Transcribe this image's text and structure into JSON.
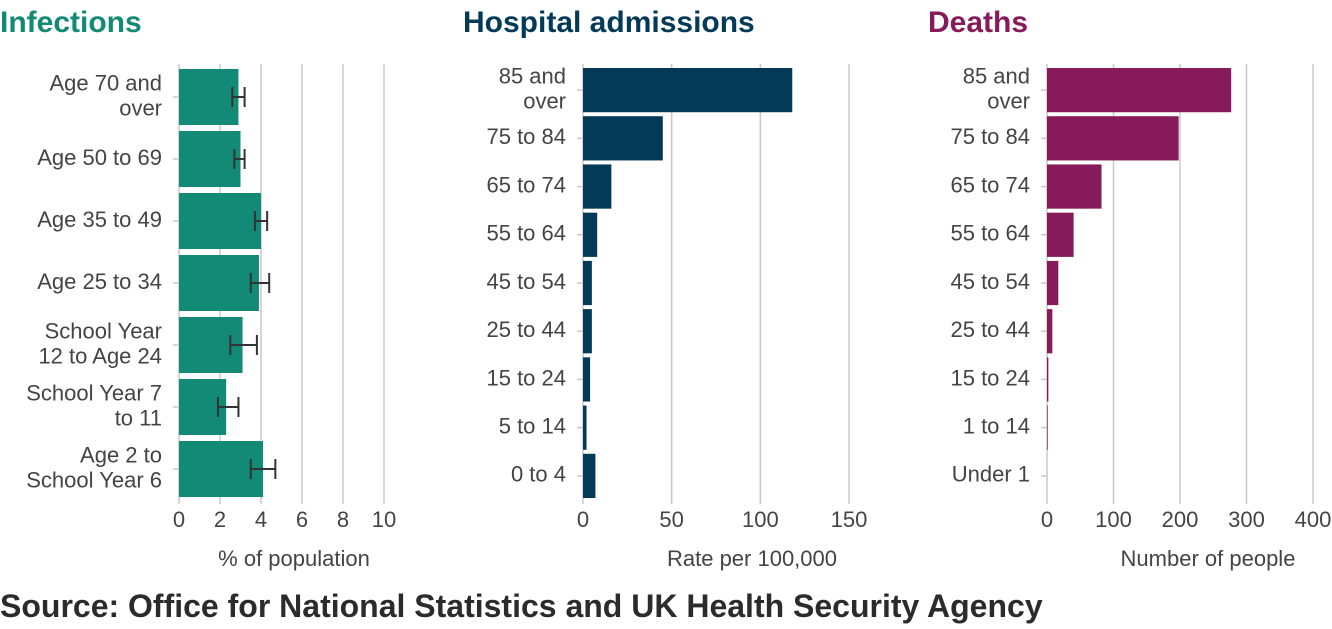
{
  "source": "Source: Office for National Statistics and UK Health Security Agency",
  "chart_data": [
    {
      "type": "bar",
      "orientation": "horizontal",
      "title": "Infections",
      "title_color": "#138a76",
      "bar_color": "#138a76",
      "xlabel": "% of population",
      "xlim": [
        0,
        10
      ],
      "xticks": [
        "0",
        "2",
        "4",
        "6",
        "8",
        "10"
      ],
      "grid": true,
      "error_bars": true,
      "categories": [
        [
          "Age 70 and",
          "over"
        ],
        [
          "Age 50 to 69"
        ],
        [
          "Age 35 to 49"
        ],
        [
          "Age 25 to 34"
        ],
        [
          "School Year",
          "12 to Age 24"
        ],
        [
          "School Year 7",
          "to 11"
        ],
        [
          "Age 2 to",
          "School Year 6"
        ]
      ],
      "values": [
        2.9,
        3.0,
        4.0,
        3.9,
        3.1,
        2.3,
        4.1
      ],
      "error_low": [
        2.6,
        2.7,
        3.7,
        3.5,
        2.5,
        1.9,
        3.5
      ],
      "error_high": [
        3.2,
        3.2,
        4.3,
        4.4,
        3.8,
        2.9,
        4.7
      ]
    },
    {
      "type": "bar",
      "orientation": "horizontal",
      "title": "Hospital admissions",
      "title_color": "#033a57",
      "bar_color": "#033a57",
      "xlabel": "Rate per 100,000",
      "xlim": [
        0,
        150
      ],
      "xticks": [
        "0",
        "50",
        "100",
        "150"
      ],
      "grid": true,
      "categories": [
        [
          "85 and",
          "over"
        ],
        [
          "75 to 84"
        ],
        [
          "65 to 74"
        ],
        [
          "55 to 64"
        ],
        [
          "45 to 54"
        ],
        [
          "25 to 44"
        ],
        [
          "15 to 24"
        ],
        [
          "5 to 14"
        ],
        [
          "0 to 4"
        ]
      ],
      "values": [
        118,
        45,
        16,
        8,
        5,
        5,
        4,
        2,
        7
      ]
    },
    {
      "type": "bar",
      "orientation": "horizontal",
      "title": "Deaths",
      "title_color": "#861a5a",
      "bar_color": "#861a5a",
      "xlabel": "Number of people",
      "xlim": [
        0,
        400
      ],
      "xticks": [
        "0",
        "100",
        "200",
        "300",
        "400"
      ],
      "grid": true,
      "categories": [
        [
          "85 and",
          "over"
        ],
        [
          "75 to 84"
        ],
        [
          "65 to 74"
        ],
        [
          "55 to 64"
        ],
        [
          "45 to 54"
        ],
        [
          "25 to 44"
        ],
        [
          "15 to 24"
        ],
        [
          "1 to 14"
        ],
        [
          "Under 1"
        ]
      ],
      "values": [
        277,
        198,
        82,
        40,
        17,
        8,
        2,
        1,
        0
      ]
    }
  ]
}
